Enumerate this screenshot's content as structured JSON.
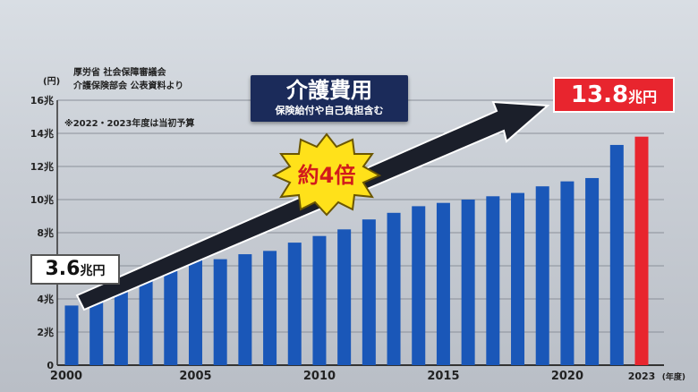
{
  "chart_data": {
    "type": "bar",
    "title": "介護費用",
    "subtitle": "保険給付や自己負担含む",
    "source_lines": [
      "厚労省 社会保障審議会",
      "介護保険部会 公表資料より"
    ],
    "note": "※2022・2023年度は当初予算",
    "y_unit": "(円)",
    "x_unit": "(年度)",
    "ylim": [
      0,
      16
    ],
    "y_ticks": [
      "0",
      "2兆",
      "4兆",
      "6兆",
      "8兆",
      "10兆",
      "12兆",
      "14兆",
      "16兆"
    ],
    "x_tick_labels": [
      {
        "label": "2000",
        "index": 0
      },
      {
        "label": "2005",
        "index": 5
      },
      {
        "label": "2010",
        "index": 10
      },
      {
        "label": "2015",
        "index": 15
      },
      {
        "label": "2020",
        "index": 20
      },
      {
        "label": "2023",
        "index": 23
      }
    ],
    "categories": [
      "2000",
      "2001",
      "2002",
      "2003",
      "2004",
      "2005",
      "2006",
      "2007",
      "2008",
      "2009",
      "2010",
      "2011",
      "2012",
      "2013",
      "2014",
      "2015",
      "2016",
      "2017",
      "2018",
      "2019",
      "2020",
      "2021",
      "2022",
      "2023"
    ],
    "values": [
      3.6,
      4.6,
      5.2,
      5.7,
      6.2,
      6.4,
      6.4,
      6.7,
      6.9,
      7.4,
      7.8,
      8.2,
      8.8,
      9.2,
      9.6,
      9.8,
      10.0,
      10.2,
      10.4,
      10.8,
      11.1,
      11.3,
      13.3,
      13.8
    ],
    "bar_color": "#1a57b8",
    "highlight_color": "#e8252e",
    "highlight_index": 23,
    "grid": true,
    "callout_start": {
      "value": "3.6",
      "unit": "兆円"
    },
    "callout_end": {
      "value": "13.8",
      "unit": "兆円"
    },
    "burst_label": "約4倍"
  }
}
